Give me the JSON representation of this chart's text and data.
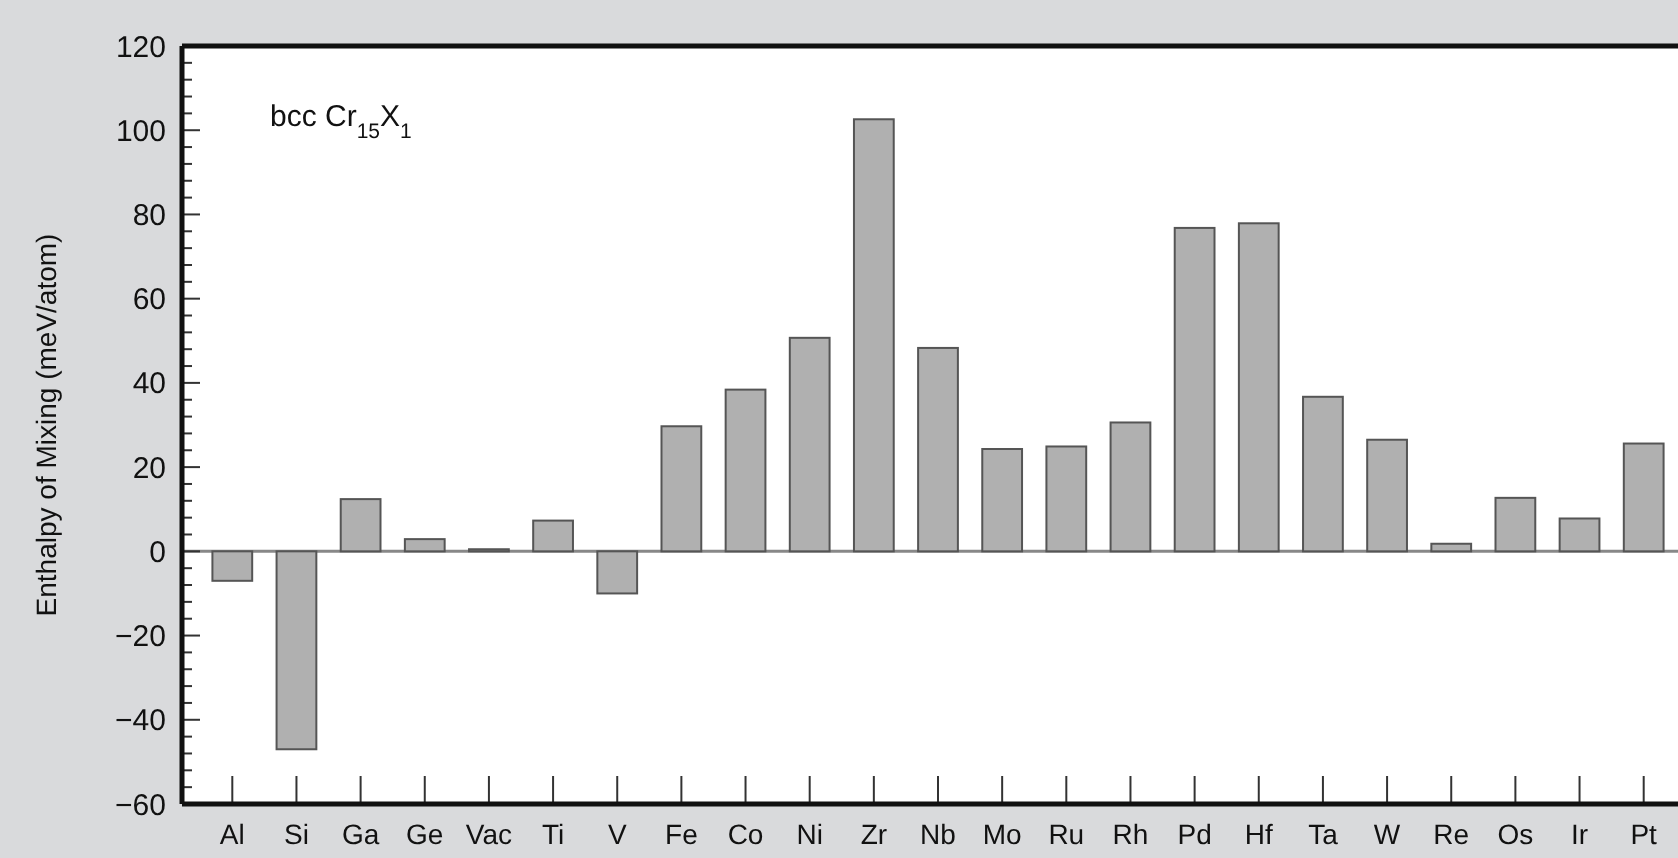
{
  "chart_data": {
    "type": "bar",
    "ylabel": "Enthalpy of Mixing (meV/atom)",
    "annotations": [
      "bcc Cr$_{15}$X$_{1}$"
    ],
    "categories": [
      "Al",
      "Si",
      "Ga",
      "Ge",
      "Vac",
      "Ti",
      "V",
      "Fe",
      "Co",
      "Ni",
      "Zr",
      "Nb",
      "Mo",
      "Ru",
      "Rh",
      "Pd",
      "Hf",
      "Ta",
      "W",
      "Re",
      "Os",
      "Ir",
      "Pt"
    ],
    "values": [
      -7,
      -47,
      12.4,
      2.9,
      0.5,
      7.3,
      -10,
      29.7,
      38.4,
      50.7,
      102.6,
      48.3,
      24.3,
      24.9,
      30.6,
      76.8,
      77.9,
      36.7,
      26.5,
      1.8,
      12.7,
      7.8,
      25.6
    ],
    "color": "#b0b0b0",
    "ylim": [
      -60,
      120
    ],
    "yticks": [
      {
        "value": -60,
        "label": "−60"
      },
      {
        "value": -56,
        "label": null
      },
      {
        "value": -52,
        "label": null
      },
      {
        "value": -48,
        "label": null
      },
      {
        "value": -44,
        "label": null
      },
      {
        "value": -40,
        "label": "−40"
      },
      {
        "value": -36,
        "label": null
      },
      {
        "value": -32,
        "label": null
      },
      {
        "value": -28,
        "label": null
      },
      {
        "value": -24,
        "label": null
      },
      {
        "value": -20,
        "label": "−20"
      },
      {
        "value": -16,
        "label": null
      },
      {
        "value": -12,
        "label": null
      },
      {
        "value": -8,
        "label": null
      },
      {
        "value": -4,
        "label": null
      },
      0,
      {
        "value": 4,
        "label": null
      },
      {
        "value": 8,
        "label": null
      },
      {
        "value": 12,
        "label": null
      },
      {
        "value": 16,
        "label": null
      },
      20,
      {
        "value": 24,
        "label": null
      },
      {
        "value": 28,
        "label": null
      },
      {
        "value": 32,
        "label": null
      },
      {
        "value": 36,
        "label": null
      },
      40,
      {
        "value": 44,
        "label": null
      },
      {
        "value": 48,
        "label": null
      },
      {
        "value": 52,
        "label": null
      },
      {
        "value": 56,
        "label": null
      },
      60,
      {
        "value": 64,
        "label": null
      },
      {
        "value": 68,
        "label": null
      },
      {
        "value": 72,
        "label": null
      },
      {
        "value": 76,
        "label": null
      },
      80,
      {
        "value": 84,
        "label": null
      },
      {
        "value": 88,
        "label": null
      },
      {
        "value": 92,
        "label": null
      },
      {
        "value": 96,
        "label": null
      },
      100,
      {
        "value": 104,
        "label": null
      },
      {
        "value": 108,
        "label": null
      },
      {
        "value": 112,
        "label": null
      },
      {
        "value": 116,
        "label": null
      },
      120
    ],
    "ref_lines": [
      {
        "axis": "y",
        "value": 0,
        "color": "#888888"
      }
    ],
    "grid": false
  }
}
